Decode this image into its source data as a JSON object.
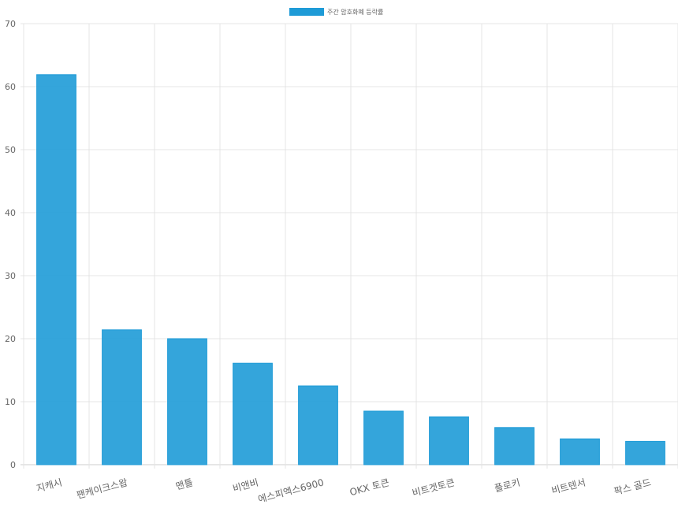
{
  "chart_data": {
    "type": "bar",
    "title": "",
    "xlabel": "",
    "ylabel": "",
    "legend": {
      "position": "top",
      "entries": [
        "주간 암호화폐 등락률"
      ]
    },
    "categories": [
      "지캐시",
      "팬케이크스왑",
      "맨틀",
      "비앤비",
      "에스피엑스6900",
      "OKX 토큰",
      "비트겟토큰",
      "플로키",
      "비트텐서",
      "팍스 골드"
    ],
    "series": [
      {
        "name": "주간 암호화폐 등락률",
        "values": [
          61.9,
          21.4,
          20.0,
          16.1,
          12.5,
          8.5,
          7.6,
          5.9,
          4.1,
          3.7
        ],
        "color": "#1e9bd7"
      }
    ],
    "ylim": [
      0,
      70
    ],
    "yticks": [
      0,
      10,
      20,
      30,
      40,
      50,
      60,
      70
    ],
    "grid": true
  }
}
